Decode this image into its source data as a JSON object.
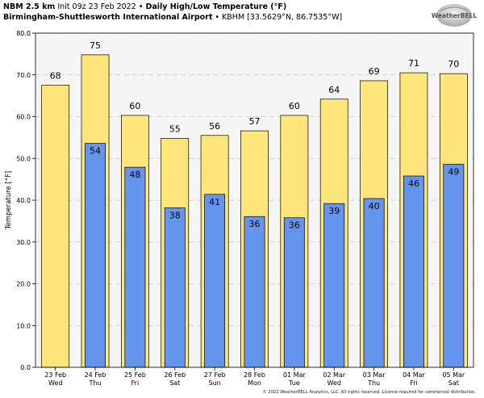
{
  "header": {
    "model": "NBM 2.5 km",
    "init": "Init 09z 23 Feb 2022",
    "sep": "•",
    "product": "Daily High/Low Temperature (°F)",
    "station": "Birmingham-Shuttlesworth International Airport",
    "station_code": "KBHM [33.5629°N, 86.7535°W]"
  },
  "logo": {
    "text": "WeatherBELL"
  },
  "copyright": "© 2022 WeatherBELL Analytics, LLC. All rights reserved. License required for commercial distribution.",
  "chart_data": {
    "type": "bar",
    "ylabel": "Temperature [°F]",
    "ylim": [
      0,
      80
    ],
    "yticks": [
      "0.0",
      "10.0",
      "20.0",
      "30.0",
      "40.0",
      "50.0",
      "60.0",
      "70.0",
      "80.0"
    ],
    "grid": true,
    "categories": [
      "23 Feb",
      "24 Feb",
      "25 Feb",
      "26 Feb",
      "27 Feb",
      "28 Feb",
      "01 Mar",
      "02 Mar",
      "03 Mar",
      "04 Mar",
      "05 Mar"
    ],
    "days": [
      "Wed",
      "Thu",
      "Fri",
      "Sat",
      "Sun",
      "Mon",
      "Tue",
      "Wed",
      "Thu",
      "Fri",
      "Sat"
    ],
    "high_values": [
      67.5,
      74.8,
      60.3,
      54.8,
      55.5,
      56.6,
      60.3,
      64.2,
      68.6,
      70.5,
      70.3
    ],
    "high_labels": [
      "68",
      "75",
      "60",
      "55",
      "56",
      "57",
      "60",
      "64",
      "69",
      "71",
      "70"
    ],
    "low_values": [
      null,
      53.6,
      47.9,
      38.2,
      41.4,
      36.1,
      35.8,
      39.2,
      40.4,
      45.8,
      48.6
    ],
    "low_labels": [
      "",
      "54",
      "48",
      "38",
      "41",
      "36",
      "36",
      "39",
      "40",
      "46",
      "49"
    ],
    "colors": {
      "high": "#ffe57a",
      "low": "#6495ed",
      "plot_bg": "#f5f5f5",
      "grid": "#c8c8c8"
    }
  }
}
